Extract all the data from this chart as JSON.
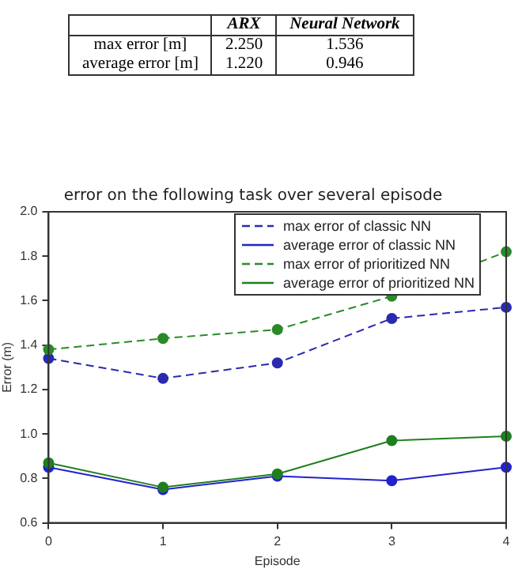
{
  "chart_data": [
    {
      "type": "heatmap",
      "categories": [
        "ARX",
        "Neural Network"
      ],
      "y_categories": [
        "max error [m]",
        "average error [m]"
      ],
      "cells": [
        [
          2.25,
          1.536
        ],
        [
          1.22,
          0.946
        ]
      ],
      "cell_labels": [
        [
          "2.250",
          "1.536"
        ],
        [
          "1.220",
          "0.946"
        ]
      ]
    },
    {
      "type": "line",
      "title": "error on the following task over several episode",
      "xlabel": "Episode",
      "ylabel": "Error (m)",
      "x": [
        0,
        1,
        2,
        3,
        4
      ],
      "xlim": [
        0,
        4
      ],
      "xticks": [
        0,
        1,
        2,
        3,
        4
      ],
      "ylim": [
        0.6,
        2.0
      ],
      "yticks": [
        {
          "value": 0.6,
          "label": "0.6"
        },
        {
          "value": 0.8,
          "label": "0.8"
        },
        {
          "value": 1.0,
          "label": "1.0"
        },
        {
          "value": 1.2,
          "label": "1.2"
        },
        {
          "value": 1.4,
          "label": "1.4"
        },
        {
          "value": 1.6,
          "label": "1.6"
        },
        {
          "value": 1.8,
          "label": "1.8"
        },
        {
          "value": 2.0,
          "label": "2.0"
        }
      ],
      "grid": false,
      "legend": "top right",
      "marker": "circle",
      "series": [
        {
          "name": "max error of classic NN",
          "color": "#2a2ab0",
          "line_style": "dashed",
          "values": [
            1.34,
            1.25,
            1.32,
            1.52,
            1.57
          ]
        },
        {
          "name": "average error of classic NN",
          "color": "#2222cc",
          "line_style": "solid",
          "values": [
            0.85,
            0.75,
            0.81,
            0.79,
            0.85
          ]
        },
        {
          "name": "max error of prioritized NN",
          "color": "#2a8a2a",
          "line_style": "dashed",
          "values": [
            1.38,
            1.43,
            1.47,
            1.62,
            1.82
          ]
        },
        {
          "name": "average error of prioritized NN",
          "color": "#1f7f1f",
          "line_style": "solid",
          "values": [
            0.87,
            0.76,
            0.82,
            0.97,
            0.99
          ]
        }
      ]
    }
  ]
}
